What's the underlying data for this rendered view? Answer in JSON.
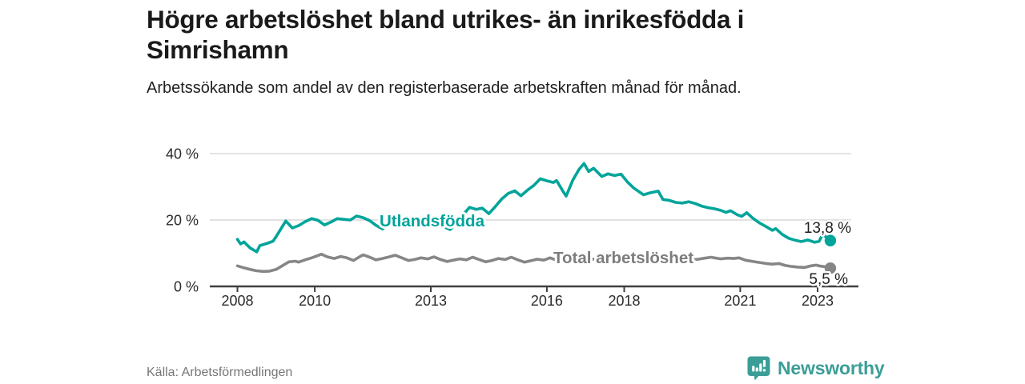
{
  "header": {
    "title": "Högre arbetslöshet bland utrikes- än inrikesfödda i Simrishamn",
    "subtitle": "Arbetssökande som andel av den registerbaserade arbetskraften månad för månad."
  },
  "footer": {
    "source": "Källa: Arbetsförmedlingen",
    "brand": "Newsworthy"
  },
  "colors": {
    "accent_teal": "#00a49a",
    "line_gray": "#868686",
    "gray_label": "#7d7d7d",
    "brand_teal": "#3a9e97",
    "grid": "#d9d9d9",
    "axis": "#3f3f3f",
    "text_dark": "#1f1f1f",
    "muted": "#767676"
  },
  "chart_data": {
    "type": "line",
    "title": "Högre arbetslöshet bland utrikes- än inrikesfödda i Simrishamn",
    "subtitle": "Arbetssökande som andel av den registerbaserade arbetskraften månad för månad.",
    "xlabel": "",
    "ylabel": "",
    "x_axis": {
      "range": [
        2007.6,
        2023.7
      ],
      "ticks": [
        2008,
        2010,
        2013,
        2016,
        2018,
        2021,
        2023
      ],
      "tick_labels": [
        "2008",
        "2010",
        "2013",
        "2016",
        "2018",
        "2021",
        "2023"
      ]
    },
    "y_axis": {
      "range": [
        0,
        40
      ],
      "ticks": [
        0,
        20,
        40
      ],
      "tick_labels": [
        "0 %",
        "20 %",
        "40 %"
      ],
      "grid": true
    },
    "legend_position": "inline-labels",
    "series": [
      {
        "name": "Utlandsfödda",
        "color": "#00a49a",
        "end_label": "13,8 %",
        "end_value": 13.8,
        "points": [
          [
            2008.0,
            14.2
          ],
          [
            2008.08,
            12.8
          ],
          [
            2008.17,
            13.4
          ],
          [
            2008.33,
            11.6
          ],
          [
            2008.5,
            10.4
          ],
          [
            2008.58,
            12.3
          ],
          [
            2008.75,
            12.9
          ],
          [
            2008.92,
            13.6
          ],
          [
            2009.0,
            15.0
          ],
          [
            2009.17,
            18.2
          ],
          [
            2009.25,
            19.7
          ],
          [
            2009.42,
            17.6
          ],
          [
            2009.58,
            18.3
          ],
          [
            2009.75,
            19.5
          ],
          [
            2009.92,
            20.4
          ],
          [
            2010.08,
            19.9
          ],
          [
            2010.25,
            18.5
          ],
          [
            2010.42,
            19.4
          ],
          [
            2010.58,
            20.4
          ],
          [
            2010.75,
            20.2
          ],
          [
            2010.92,
            20.0
          ],
          [
            2011.08,
            21.2
          ],
          [
            2011.25,
            20.7
          ],
          [
            2011.42,
            19.8
          ],
          [
            2011.58,
            18.4
          ],
          [
            2011.75,
            17.3
          ],
          [
            2011.92,
            18.9
          ],
          [
            2012.08,
            19.9
          ],
          [
            2012.25,
            20.4
          ],
          [
            2012.42,
            18.6
          ],
          [
            2012.58,
            17.9
          ],
          [
            2012.75,
            19.8
          ],
          [
            2012.92,
            20.7
          ],
          [
            2013.08,
            19.4
          ],
          [
            2013.25,
            18.4
          ],
          [
            2013.5,
            17.1
          ],
          [
            2013.67,
            19.0
          ],
          [
            2013.83,
            21.5
          ],
          [
            2014.0,
            23.8
          ],
          [
            2014.17,
            23.2
          ],
          [
            2014.33,
            23.6
          ],
          [
            2014.5,
            21.9
          ],
          [
            2014.67,
            24.1
          ],
          [
            2014.83,
            26.3
          ],
          [
            2015.0,
            28.0
          ],
          [
            2015.17,
            28.8
          ],
          [
            2015.33,
            27.3
          ],
          [
            2015.5,
            29.0
          ],
          [
            2015.67,
            30.5
          ],
          [
            2015.83,
            32.4
          ],
          [
            2016.0,
            31.8
          ],
          [
            2016.17,
            31.3
          ],
          [
            2016.25,
            31.9
          ],
          [
            2016.42,
            28.6
          ],
          [
            2016.5,
            27.2
          ],
          [
            2016.67,
            32.0
          ],
          [
            2016.83,
            35.2
          ],
          [
            2016.96,
            37.0
          ],
          [
            2017.08,
            34.6
          ],
          [
            2017.21,
            35.6
          ],
          [
            2017.42,
            33.1
          ],
          [
            2017.58,
            33.9
          ],
          [
            2017.75,
            33.4
          ],
          [
            2017.92,
            33.8
          ],
          [
            2018.08,
            31.5
          ],
          [
            2018.25,
            29.6
          ],
          [
            2018.5,
            27.6
          ],
          [
            2018.67,
            28.2
          ],
          [
            2018.88,
            28.7
          ],
          [
            2019.0,
            26.2
          ],
          [
            2019.17,
            25.9
          ],
          [
            2019.33,
            25.3
          ],
          [
            2019.5,
            25.1
          ],
          [
            2019.67,
            25.5
          ],
          [
            2019.83,
            25.0
          ],
          [
            2020.0,
            24.2
          ],
          [
            2020.17,
            23.7
          ],
          [
            2020.33,
            23.4
          ],
          [
            2020.5,
            22.9
          ],
          [
            2020.63,
            22.3
          ],
          [
            2020.75,
            22.8
          ],
          [
            2020.92,
            21.6
          ],
          [
            2021.04,
            21.1
          ],
          [
            2021.17,
            22.2
          ],
          [
            2021.33,
            20.5
          ],
          [
            2021.5,
            19.1
          ],
          [
            2021.67,
            18.0
          ],
          [
            2021.83,
            16.9
          ],
          [
            2021.92,
            17.4
          ],
          [
            2022.08,
            15.7
          ],
          [
            2022.25,
            14.5
          ],
          [
            2022.42,
            13.9
          ],
          [
            2022.58,
            13.5
          ],
          [
            2022.75,
            14.0
          ],
          [
            2022.92,
            13.3
          ],
          [
            2023.04,
            13.6
          ],
          [
            2023.13,
            15.7
          ],
          [
            2023.25,
            14.6
          ],
          [
            2023.33,
            13.8
          ]
        ]
      },
      {
        "name": "Total arbetslöshet",
        "color": "#868686",
        "end_label": "5,5 %",
        "end_value": 5.5,
        "points": [
          [
            2008.0,
            6.2
          ],
          [
            2008.17,
            5.6
          ],
          [
            2008.33,
            5.1
          ],
          [
            2008.5,
            4.7
          ],
          [
            2008.67,
            4.5
          ],
          [
            2008.83,
            4.6
          ],
          [
            2009.0,
            5.1
          ],
          [
            2009.17,
            6.3
          ],
          [
            2009.33,
            7.4
          ],
          [
            2009.5,
            7.6
          ],
          [
            2009.58,
            7.3
          ],
          [
            2009.75,
            8.0
          ],
          [
            2009.92,
            8.6
          ],
          [
            2010.08,
            9.3
          ],
          [
            2010.17,
            9.7
          ],
          [
            2010.33,
            8.9
          ],
          [
            2010.5,
            8.4
          ],
          [
            2010.67,
            9.0
          ],
          [
            2010.83,
            8.6
          ],
          [
            2011.0,
            7.8
          ],
          [
            2011.17,
            9.0
          ],
          [
            2011.25,
            9.5
          ],
          [
            2011.42,
            8.8
          ],
          [
            2011.58,
            8.0
          ],
          [
            2011.75,
            8.4
          ],
          [
            2011.92,
            8.9
          ],
          [
            2012.08,
            9.4
          ],
          [
            2012.25,
            8.6
          ],
          [
            2012.42,
            7.8
          ],
          [
            2012.58,
            8.1
          ],
          [
            2012.75,
            8.6
          ],
          [
            2012.92,
            8.3
          ],
          [
            2013.08,
            8.9
          ],
          [
            2013.25,
            8.1
          ],
          [
            2013.42,
            7.5
          ],
          [
            2013.58,
            7.9
          ],
          [
            2013.75,
            8.3
          ],
          [
            2013.92,
            8.0
          ],
          [
            2014.08,
            8.8
          ],
          [
            2014.25,
            8.1
          ],
          [
            2014.42,
            7.4
          ],
          [
            2014.58,
            7.8
          ],
          [
            2014.75,
            8.4
          ],
          [
            2014.92,
            8.1
          ],
          [
            2015.08,
            8.8
          ],
          [
            2015.25,
            8.0
          ],
          [
            2015.42,
            7.3
          ],
          [
            2015.58,
            7.7
          ],
          [
            2015.75,
            8.2
          ],
          [
            2015.92,
            7.9
          ],
          [
            2016.08,
            8.6
          ],
          [
            2016.25,
            7.9
          ],
          [
            2016.42,
            7.3
          ],
          [
            2016.58,
            7.7
          ],
          [
            2016.75,
            8.2
          ],
          [
            2016.92,
            8.0
          ],
          [
            2017.08,
            8.7
          ],
          [
            2017.25,
            8.0
          ],
          [
            2017.42,
            7.4
          ],
          [
            2017.58,
            7.8
          ],
          [
            2017.75,
            8.3
          ],
          [
            2017.92,
            8.0
          ],
          [
            2018.08,
            8.6
          ],
          [
            2018.25,
            7.9
          ],
          [
            2018.42,
            7.3
          ],
          [
            2018.58,
            7.7
          ],
          [
            2018.75,
            8.1
          ],
          [
            2018.92,
            7.9
          ],
          [
            2019.08,
            8.5
          ],
          [
            2019.25,
            7.8
          ],
          [
            2019.42,
            7.5
          ],
          [
            2019.58,
            7.7
          ],
          [
            2019.75,
            8.0
          ],
          [
            2019.92,
            8.2
          ],
          [
            2020.08,
            8.5
          ],
          [
            2020.25,
            8.8
          ],
          [
            2020.33,
            8.6
          ],
          [
            2020.5,
            8.3
          ],
          [
            2020.67,
            8.5
          ],
          [
            2020.83,
            8.4
          ],
          [
            2020.97,
            8.6
          ],
          [
            2021.13,
            7.9
          ],
          [
            2021.33,
            7.5
          ],
          [
            2021.5,
            7.2
          ],
          [
            2021.67,
            6.9
          ],
          [
            2021.83,
            6.7
          ],
          [
            2022.0,
            6.9
          ],
          [
            2022.17,
            6.3
          ],
          [
            2022.33,
            6.0
          ],
          [
            2022.5,
            5.8
          ],
          [
            2022.67,
            5.7
          ],
          [
            2022.83,
            6.2
          ],
          [
            2022.96,
            6.4
          ],
          [
            2023.08,
            6.1
          ],
          [
            2023.21,
            5.9
          ],
          [
            2023.33,
            5.5
          ]
        ]
      }
    ]
  }
}
